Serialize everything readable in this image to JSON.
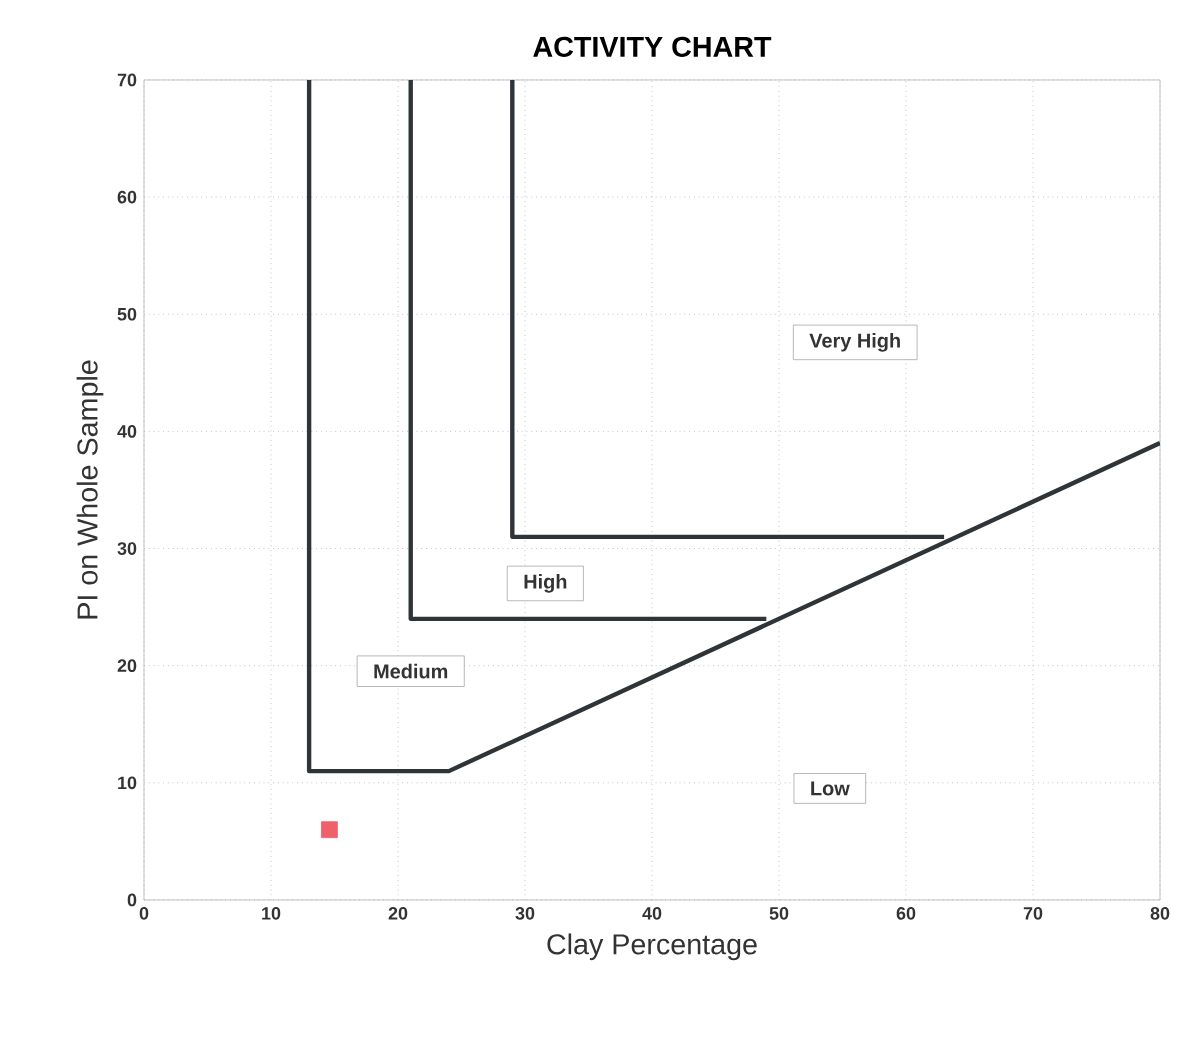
{
  "chart_data": {
    "type": "line",
    "title": "ACTIVITY CHART",
    "xlabel": "Clay Percentage",
    "ylabel": "PI on Whole Sample",
    "xlim": [
      0,
      80
    ],
    "ylim": [
      0,
      70
    ],
    "xticks": [
      0,
      10,
      20,
      30,
      40,
      50,
      60,
      70,
      80
    ],
    "yticks": [
      0,
      10,
      20,
      30,
      40,
      50,
      60,
      70
    ],
    "grid": true,
    "line_style": "solid",
    "series": [
      {
        "color": "#2f3439",
        "marker": "none",
        "x": [
          13,
          13,
          24,
          80
        ],
        "values": [
          70,
          11,
          11,
          39
        ]
      },
      {
        "color": "#2f3439",
        "marker": "none",
        "x": [
          21,
          21,
          49
        ],
        "values": [
          70,
          24,
          24
        ]
      },
      {
        "color": "#2f3439",
        "marker": "none",
        "x": [
          29,
          29,
          63
        ],
        "values": [
          70,
          31,
          31
        ]
      },
      {
        "type": "scatter",
        "color": "#f0606a",
        "marker": "square",
        "x": [
          14.6
        ],
        "values": [
          6
        ]
      }
    ],
    "annotations": [
      "Very High",
      "High",
      "Medium",
      "Low"
    ]
  }
}
